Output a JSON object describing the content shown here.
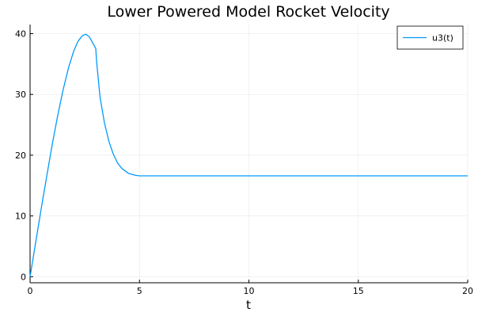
{
  "chart_data": {
    "type": "line",
    "title": "Lower Powered Model Rocket Velocity",
    "xlabel": "t",
    "ylabel": "",
    "xlim": [
      0,
      20
    ],
    "ylim": [
      -1,
      41.5
    ],
    "x_ticks": [
      0,
      5,
      10,
      15,
      20
    ],
    "x_tick_labels": [
      "0",
      "5",
      "10",
      "15",
      "20"
    ],
    "y_ticks": [
      0,
      10,
      20,
      30,
      40
    ],
    "y_tick_labels": [
      "0",
      "10",
      "20",
      "30",
      "40"
    ],
    "grid": true,
    "legend_position": "top-right",
    "series": [
      {
        "name": "u3(t)",
        "color": "#009AFA",
        "x": [
          0,
          0.25,
          0.5,
          0.75,
          1.0,
          1.25,
          1.5,
          1.75,
          2.0,
          2.2,
          2.4,
          2.55,
          2.7,
          2.8,
          2.9,
          3.0,
          3.05,
          3.2,
          3.4,
          3.6,
          3.8,
          4.0,
          4.2,
          4.5,
          4.8,
          5.0,
          5.2,
          6.0,
          8.0,
          10.0,
          12.0,
          15.0,
          18.0,
          20.0
        ],
        "values": [
          0,
          5.5,
          11.0,
          16.3,
          21.5,
          26.3,
          30.6,
          34.3,
          37.2,
          38.8,
          39.7,
          39.9,
          39.5,
          38.9,
          38.2,
          37.6,
          35.0,
          29.5,
          25.3,
          22.3,
          20.2,
          18.7,
          17.8,
          17.0,
          16.7,
          16.6,
          16.6,
          16.6,
          16.6,
          16.6,
          16.6,
          16.6,
          16.6,
          16.6
        ]
      }
    ]
  }
}
